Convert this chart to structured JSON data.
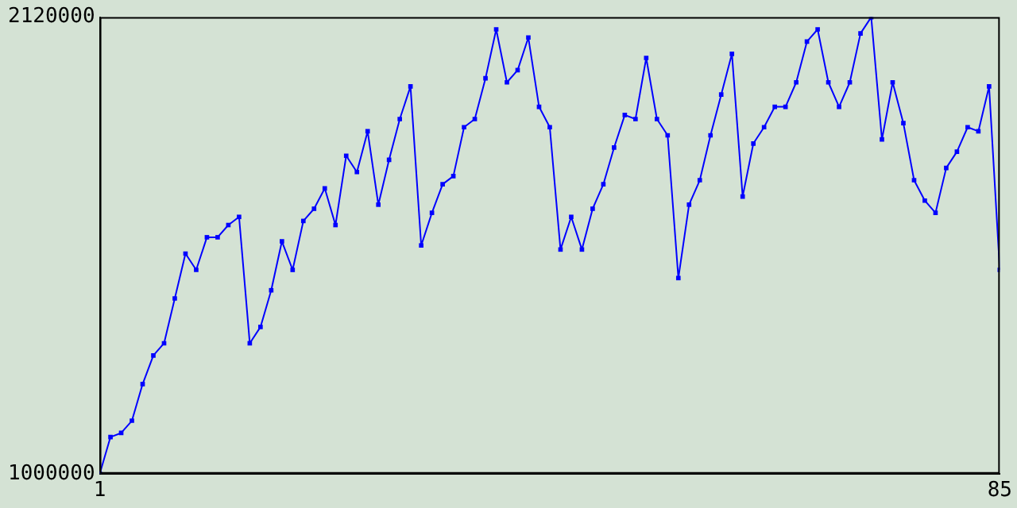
{
  "chart_data": {
    "type": "line",
    "x": [
      1,
      2,
      3,
      4,
      5,
      6,
      7,
      8,
      9,
      10,
      11,
      12,
      13,
      14,
      15,
      16,
      17,
      18,
      19,
      20,
      21,
      22,
      23,
      24,
      25,
      26,
      27,
      28,
      29,
      30,
      31,
      32,
      33,
      34,
      35,
      36,
      37,
      38,
      39,
      40,
      41,
      42,
      43,
      44,
      45,
      46,
      47,
      48,
      49,
      50,
      51,
      52,
      53,
      54,
      55,
      56,
      57,
      58,
      59,
      60,
      61,
      62,
      63,
      64,
      65,
      66,
      67,
      68,
      69,
      70,
      71,
      72,
      73,
      74,
      75,
      76,
      77,
      78,
      79,
      80,
      81,
      82,
      83,
      84,
      85
    ],
    "series": [
      {
        "color": "#0000ff",
        "values": [
          1000000,
          1090000,
          1100000,
          1130000,
          1220000,
          1290000,
          1320000,
          1430000,
          1540000,
          1500000,
          1580000,
          1580000,
          1610000,
          1630000,
          1320000,
          1360000,
          1450000,
          1570000,
          1500000,
          1620000,
          1650000,
          1700000,
          1610000,
          1780000,
          1740000,
          1840000,
          1660000,
          1770000,
          1870000,
          1950000,
          1560000,
          1640000,
          1710000,
          1730000,
          1850000,
          1870000,
          1970000,
          2090000,
          1960000,
          1990000,
          2070000,
          1900000,
          1850000,
          1550000,
          1630000,
          1550000,
          1650000,
          1710000,
          1800000,
          1880000,
          1870000,
          2020000,
          1870000,
          1830000,
          1480000,
          1660000,
          1720000,
          1830000,
          1930000,
          2030000,
          1680000,
          1810000,
          1850000,
          1900000,
          1900000,
          1960000,
          2060000,
          2090000,
          1960000,
          1900000,
          1960000,
          2080000,
          2120000,
          1820000,
          1960000,
          1860000,
          1720000,
          1670000,
          1640000,
          1750000,
          1790000,
          1850000,
          1840000,
          1950000,
          1500000
        ]
      }
    ],
    "xlim": [
      1,
      85
    ],
    "xticks": [
      1,
      85
    ],
    "ylim": [
      1000000,
      2120000
    ],
    "yticks": [
      1000000,
      2120000
    ],
    "grid": false,
    "legend": false,
    "marker": "square",
    "line_style": "solid"
  }
}
